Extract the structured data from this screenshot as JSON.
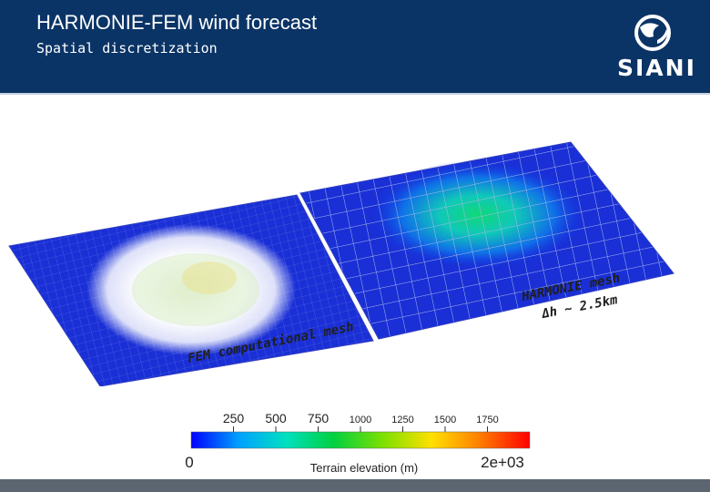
{
  "header": {
    "title": "HARMONIE-FEM wind forecast",
    "subtitle": "Spatial discretization",
    "logo_text": "SIANI",
    "background_color": "#0b3466"
  },
  "labels": {
    "harmonie_mesh": "HARMONIE mesh",
    "harmonie_resolution": "Δh ~ 2.5km",
    "fem_mesh": "FEM computational mesh"
  },
  "colorbar": {
    "title": "Terrain elevation (m)",
    "min_label": "0",
    "max_label": "2e+03",
    "ticks": [
      "250",
      "500",
      "750",
      "1000",
      "1250",
      "1500",
      "1750"
    ],
    "colors": [
      "#0000ff",
      "#00a0ff",
      "#00e0c0",
      "#00d040",
      "#80e000",
      "#ffe000",
      "#ff8000",
      "#ff0000"
    ]
  }
}
